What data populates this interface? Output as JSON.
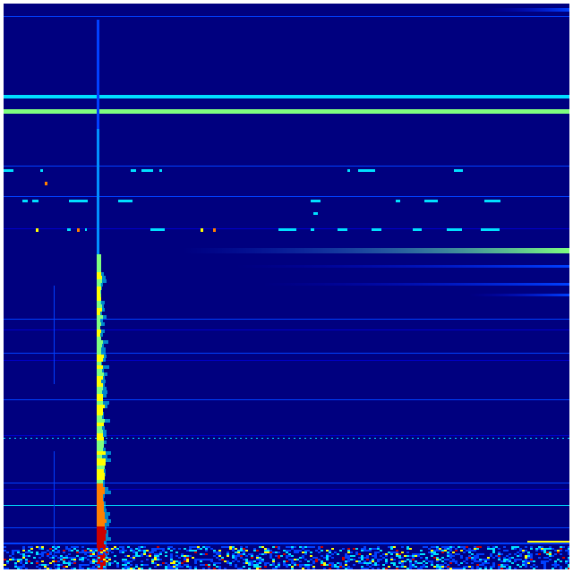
{
  "image": {
    "kind": "spectrogram-heatmap",
    "colormap": "jet",
    "colors": {
      "background": "#00007f",
      "low": "#0000cc",
      "mid_blue": "#0040ff",
      "cyan": "#00e0ff",
      "green": "#7fff7f",
      "yellow": "#ffff00",
      "orange": "#ff8000",
      "red": "#cc0000"
    }
  }
}
